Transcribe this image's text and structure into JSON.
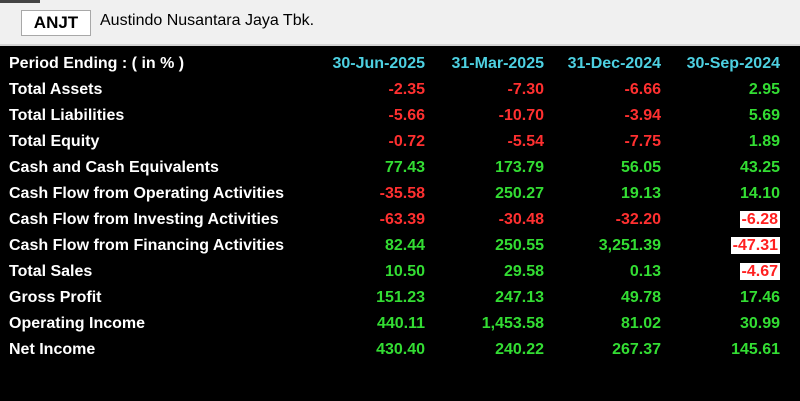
{
  "header": {
    "ticker": "ANJT",
    "company": "Austindo Nusantara Jaya Tbk."
  },
  "table": {
    "period_label": "Period Ending :   ( in % )",
    "periods": [
      "30-Jun-2025",
      "31-Mar-2025",
      "31-Dec-2024",
      "30-Sep-2024"
    ],
    "rows": [
      {
        "label": "Total Assets",
        "values": [
          "-2.35",
          "-7.30",
          "-6.66",
          "2.95"
        ]
      },
      {
        "label": "Total Liabilities",
        "values": [
          "-5.66",
          "-10.70",
          "-3.94",
          "5.69"
        ]
      },
      {
        "label": "Total Equity",
        "values": [
          "-0.72",
          "-5.54",
          "-7.75",
          "1.89"
        ]
      },
      {
        "label": "Cash and Cash Equivalents",
        "values": [
          "77.43",
          "173.79",
          "56.05",
          "43.25"
        ]
      },
      {
        "label": "Cash Flow from Operating Activities",
        "values": [
          "-35.58",
          "250.27",
          "19.13",
          "14.10"
        ]
      },
      {
        "label": "Cash Flow from Investing Activities",
        "values": [
          "-63.39",
          "-30.48",
          "-32.20",
          "-6.28"
        ]
      },
      {
        "label": "Cash Flow from Financing Activities",
        "values": [
          "82.44",
          "250.55",
          "3,251.39",
          "-47.31"
        ]
      },
      {
        "label": "Total Sales",
        "values": [
          "10.50",
          "29.58",
          "0.13",
          "-4.67"
        ]
      },
      {
        "label": "Gross Profit",
        "values": [
          "151.23",
          "247.13",
          "49.78",
          "17.46"
        ]
      },
      {
        "label": "Operating Income",
        "values": [
          "440.11",
          "1,453.58",
          "81.02",
          "30.99"
        ]
      },
      {
        "label": "Net Income",
        "values": [
          "430.40",
          "240.22",
          "267.37",
          "145.61"
        ]
      }
    ]
  },
  "colors": {
    "positive": "#33dd33",
    "negative": "#ff3030",
    "header_text": "#4dd0e1",
    "background": "#000000"
  }
}
